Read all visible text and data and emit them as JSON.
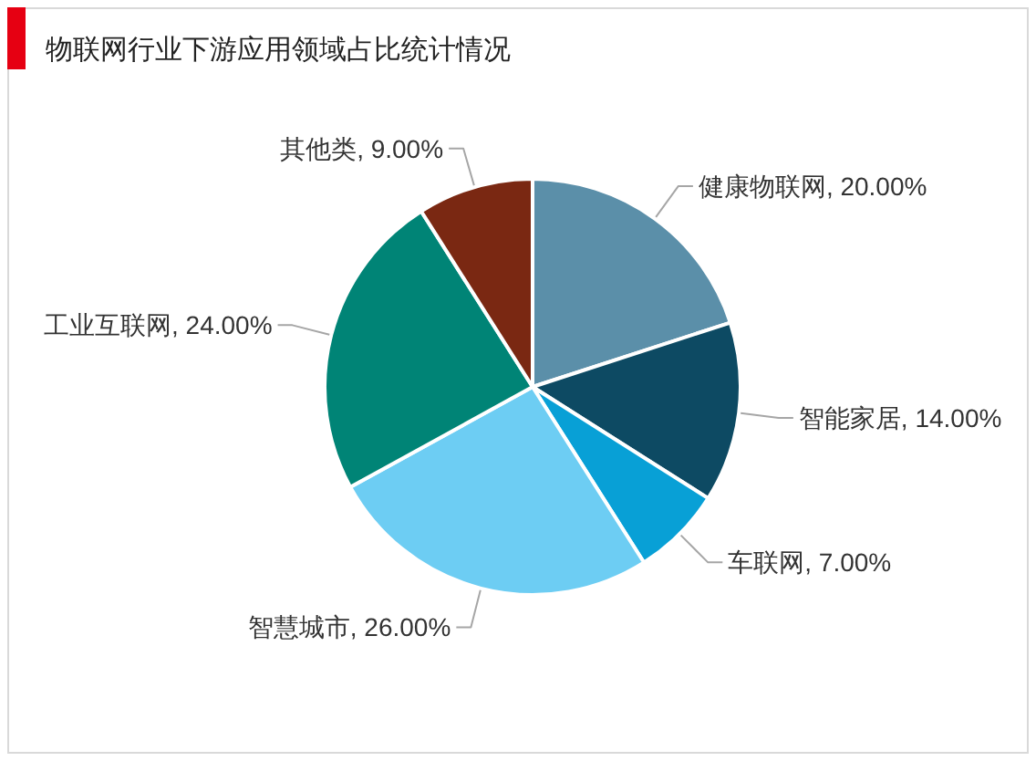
{
  "chart_data": {
    "type": "pie",
    "title": "物联网行业下游应用领域占比统计情况",
    "categories": [
      "健康物联网",
      "智能家居",
      "车联网",
      "智慧城市",
      "工业互联网",
      "其他类"
    ],
    "values": [
      20,
      14,
      7,
      26,
      24,
      9
    ],
    "colors": [
      "#5b8fa9",
      "#0d4a63",
      "#08a0d6",
      "#6dcdf3",
      "#008476",
      "#7a2812"
    ],
    "value_labels": [
      "20.00%",
      "14.00%",
      "7.00%",
      "26.00%",
      "24.00%",
      "9.00%"
    ]
  }
}
